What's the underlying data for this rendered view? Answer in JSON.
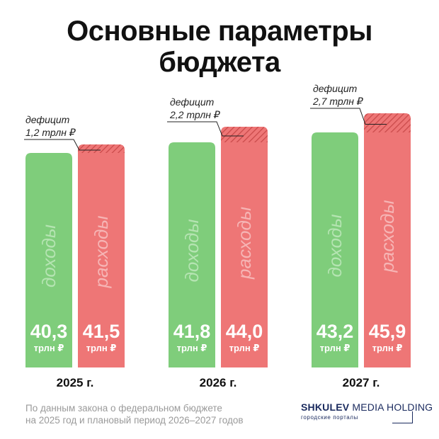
{
  "title": {
    "line1": "Основные параметры",
    "line2": "бюджета"
  },
  "chart_data": {
    "type": "bar",
    "title": "Основные параметры бюджета",
    "categories": [
      "2025 г.",
      "2026 г.",
      "2027 г."
    ],
    "series": [
      {
        "name": "доходы",
        "values": [
          40.3,
          41.8,
          43.2
        ],
        "labels": [
          "40,3",
          "41,8",
          "43,2"
        ],
        "color": "#7fcd7b"
      },
      {
        "name": "расходы",
        "values": [
          41.5,
          44.0,
          45.9
        ],
        "labels": [
          "41,5",
          "44,0",
          "45,9"
        ],
        "color": "#ee7676"
      }
    ],
    "deficit": {
      "prefix": "дефицит",
      "labels": [
        "1,2 трлн ₽",
        "2,2 трлн ₽",
        "2,7 трлн ₽"
      ],
      "values": [
        1.2,
        2.2,
        2.7
      ]
    },
    "unit": "трлн ₽"
  },
  "footer": {
    "note_line1": "По данным закона о федеральном бюджете",
    "note_line2": "на 2025 год и плановый период 2026–2027 годов",
    "brand_bold": "SHKULEV",
    "brand_light": " MEDIA HOLDING",
    "brand_sub": "городские порталы"
  },
  "colors": {
    "income": "#7fcd7b",
    "expense": "#ee7676",
    "expense_hatch": "#cf5252",
    "watermark_income": "#b5e4b2",
    "watermark_expense": "#f6b5b5"
  }
}
